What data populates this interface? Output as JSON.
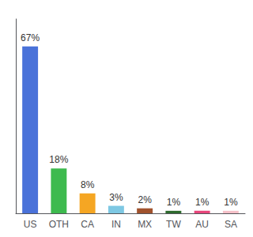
{
  "chart_data": {
    "type": "bar",
    "categories": [
      "US",
      "OTH",
      "CA",
      "IN",
      "MX",
      "TW",
      "AU",
      "SA"
    ],
    "values": [
      67,
      18,
      8,
      3,
      2,
      1,
      1,
      1
    ],
    "value_labels": [
      "67%",
      "18%",
      "8%",
      "3%",
      "2%",
      "1%",
      "1%",
      "1%"
    ],
    "colors": [
      "#4a72d9",
      "#3dba4e",
      "#f5a623",
      "#7ec8e3",
      "#a0522d",
      "#2d6a2d",
      "#e8457a",
      "#f5c0c8"
    ],
    "ylim": [
      0,
      78
    ],
    "yticks": [],
    "tick_labels": "x",
    "grid": false,
    "data_labels": true
  }
}
